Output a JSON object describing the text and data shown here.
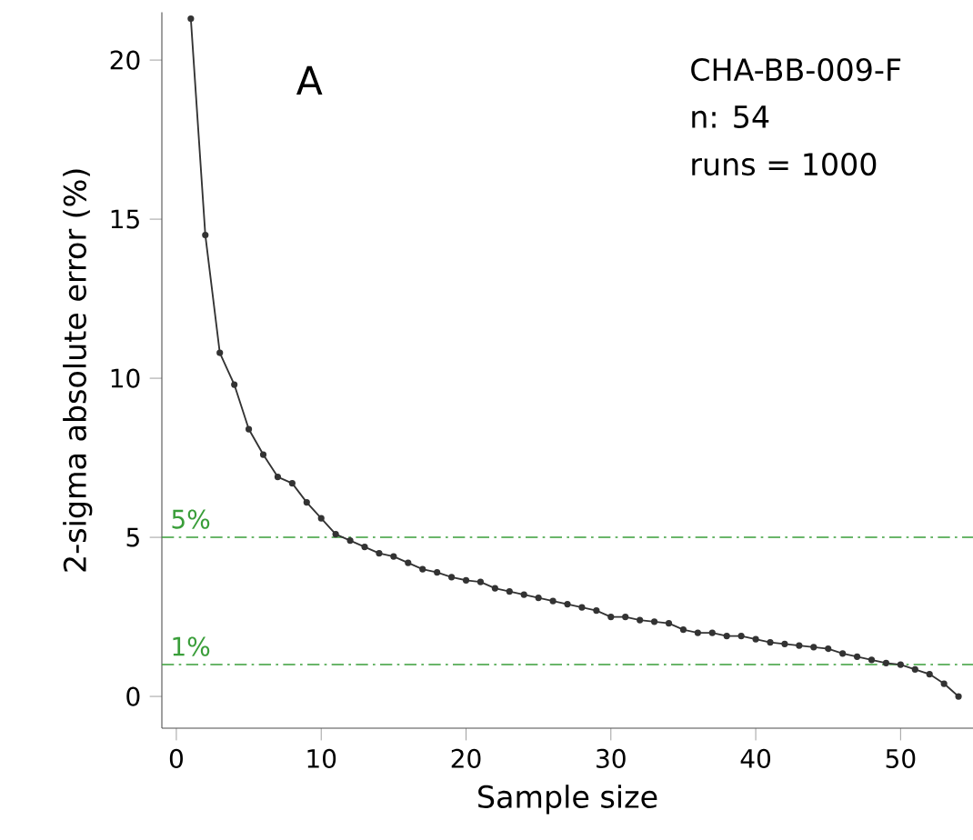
{
  "chart_data": {
    "type": "line",
    "xlabel": "Sample size",
    "ylabel": "2-sigma absolute error (%)",
    "x": [
      1,
      2,
      3,
      4,
      5,
      6,
      7,
      8,
      9,
      10,
      11,
      12,
      13,
      14,
      15,
      16,
      17,
      18,
      19,
      20,
      21,
      22,
      23,
      24,
      25,
      26,
      27,
      28,
      29,
      30,
      31,
      32,
      33,
      34,
      35,
      36,
      37,
      38,
      39,
      40,
      41,
      42,
      43,
      44,
      45,
      46,
      47,
      48,
      49,
      50,
      51,
      52,
      53,
      54
    ],
    "series": [
      {
        "color": "#333333",
        "values": [
          21.3,
          14.5,
          10.8,
          9.8,
          8.4,
          7.6,
          6.9,
          6.7,
          6.1,
          5.6,
          5.1,
          4.9,
          4.7,
          4.5,
          4.4,
          4.2,
          4.0,
          3.9,
          3.75,
          3.65,
          3.6,
          3.4,
          3.3,
          3.2,
          3.1,
          3.0,
          2.9,
          2.8,
          2.7,
          2.5,
          2.5,
          2.4,
          2.35,
          2.3,
          2.1,
          2.0,
          2.0,
          1.9,
          1.9,
          1.8,
          1.7,
          1.65,
          1.6,
          1.55,
          1.5,
          1.35,
          1.25,
          1.15,
          1.05,
          1.0,
          0.85,
          0.7,
          0.4,
          0.0
        ]
      }
    ],
    "xlim": [
      -1,
      55
    ],
    "ylim": [
      -1,
      21.5
    ],
    "xticks": [
      0,
      10,
      20,
      30,
      40,
      50
    ],
    "yticks": [
      0,
      5,
      10,
      15,
      20
    ],
    "marker": "circle",
    "line_style": "solid",
    "ref_lines": [
      {
        "axis": "y",
        "value": 5,
        "label": "5%",
        "color": "#3a9e3a",
        "line_style": "dashdotted"
      },
      {
        "axis": "y",
        "value": 1,
        "label": "1%",
        "color": "#3a9e3a",
        "line_style": "dashdotted"
      }
    ],
    "annotations": [
      "A",
      "CHA-BB-009-F",
      "n: 54",
      "runs = 1000"
    ]
  }
}
